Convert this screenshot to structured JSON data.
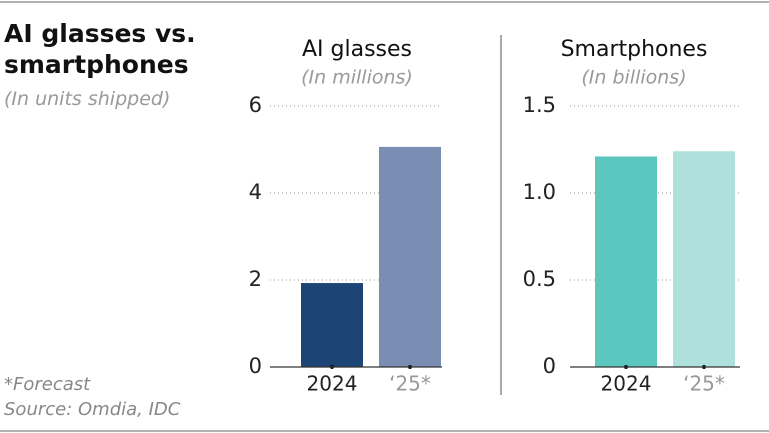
{
  "title": "AI glasses vs. smartphones",
  "subtitle": "(In units shipped)",
  "notes": [
    "*Forecast",
    "Source: Omdia, IDC"
  ],
  "chart_data": [
    {
      "type": "bar",
      "title": "AI glasses",
      "subtitle": "(In millions)",
      "categories": [
        "2024",
        "‘25*"
      ],
      "values": [
        1.93,
        5.06
      ],
      "colors": [
        "#1c4475",
        "#7a8db3"
      ],
      "ylim": [
        0,
        6
      ],
      "yticks": [
        0,
        2,
        4,
        6
      ],
      "grid": true
    },
    {
      "type": "bar",
      "title": "Smartphones",
      "subtitle": "(In billions)",
      "categories": [
        "2024",
        "‘25*"
      ],
      "values": [
        1.21,
        1.24
      ],
      "colors": [
        "#5cc7bf",
        "#aee0dc"
      ],
      "ylim": [
        0,
        1.5
      ],
      "yticks": [
        0,
        {
          "value": 0.5,
          "label": "0.5"
        },
        {
          "value": 1,
          "label": "1.0"
        },
        1.5
      ],
      "grid": true
    }
  ]
}
